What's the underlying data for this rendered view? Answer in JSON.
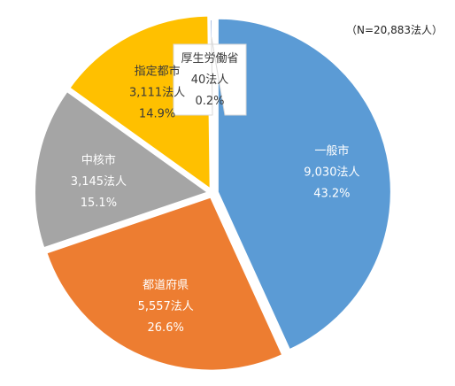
{
  "chart_data": {
    "type": "pie",
    "note": "（N=20,883法人）",
    "start_angle_deg": 0,
    "direction": "clockwise",
    "slices": [
      {
        "label": "一般市",
        "count": "9,030法人",
        "percent": "43.2%",
        "value": 43.2,
        "color": "#5b9bd5",
        "text_color": "#ffffff"
      },
      {
        "label": "都道府県",
        "count": "5,557法人",
        "percent": "26.6%",
        "value": 26.6,
        "color": "#ed7d31",
        "text_color": "#ffffff"
      },
      {
        "label": "中核市",
        "count": "3,145法人",
        "percent": "15.1%",
        "value": 15.1,
        "color": "#a5a5a5",
        "text_color": "#ffffff"
      },
      {
        "label": "指定都市",
        "count": "3,111法人",
        "percent": "14.9%",
        "value": 14.9,
        "color": "#ffc000",
        "text_color": "#3a3a3a"
      },
      {
        "label": "厚生労働省",
        "count": "40法人",
        "percent": "0.2%",
        "value": 0.2,
        "color": "#4472c4",
        "text_color": "#3a3a3a",
        "callout": true
      }
    ]
  }
}
